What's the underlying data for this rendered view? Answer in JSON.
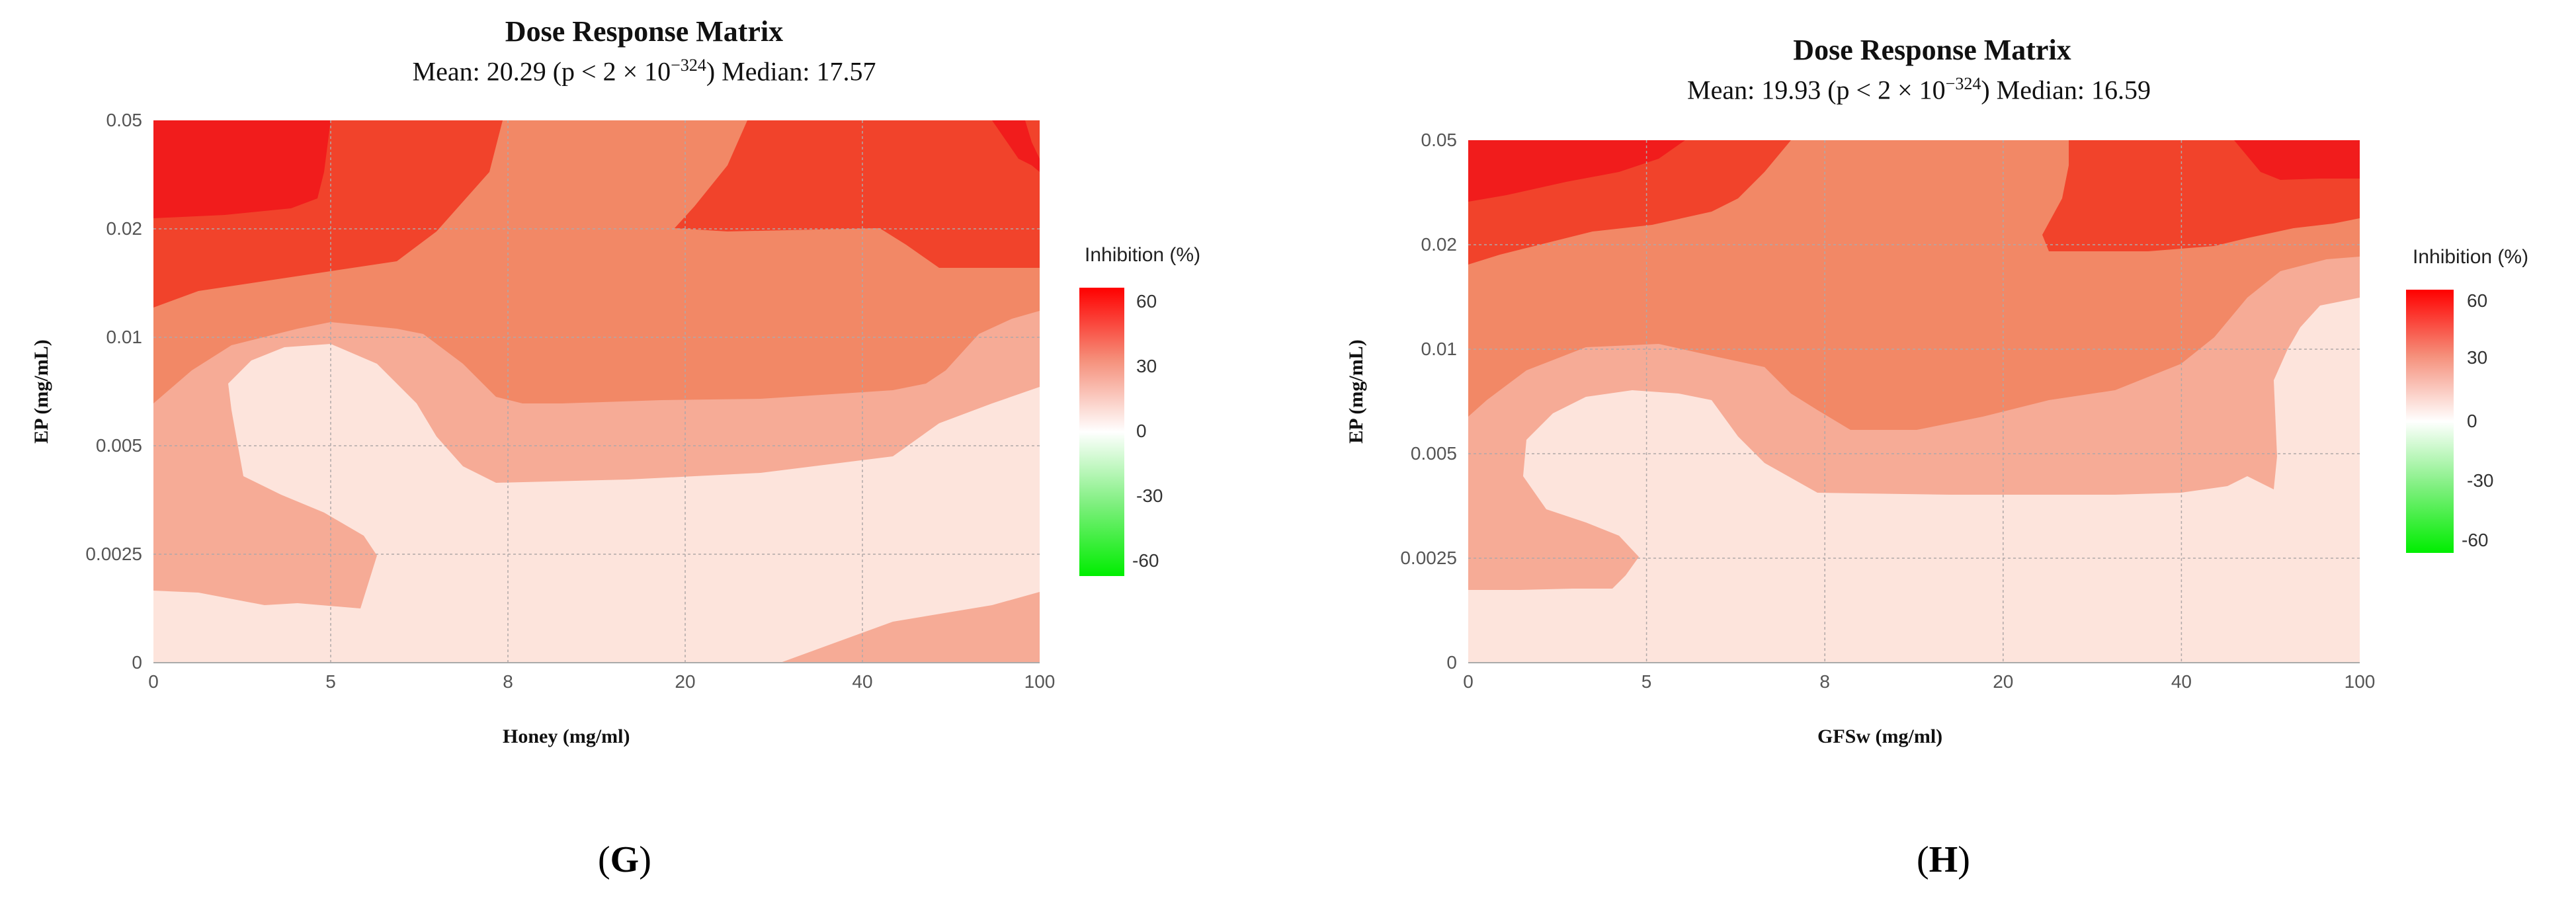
{
  "chart_data": [
    {
      "type": "heatmap",
      "panel": "G",
      "title": "Dose Response Matrix",
      "subtitle": {
        "mean_label": "Mean: 20.29 (p < 2 × 10",
        "p_exponent": "−324",
        "median_label": ") Median: 17.57"
      },
      "xlabel": "Honey (mg/ml)",
      "ylabel": "EP (mg/mL)",
      "x_ticks": [
        "0",
        "5",
        "8",
        "20",
        "40",
        "100"
      ],
      "y_ticks": [
        "0",
        "0.0025",
        "0.005",
        "0.01",
        "0.02",
        "0.05"
      ],
      "legend_title": "Inhibition (%)",
      "legend_ticks": [
        "60",
        "30",
        "0",
        "-30",
        "-60"
      ],
      "inhibition_levels": [
        {
          "level": "0-15",
          "color": "#fde4dc"
        },
        {
          "level": "15-30",
          "color": "#f6ab96"
        },
        {
          "level": "30-45",
          "color": "#f28866"
        },
        {
          "level": "45-60",
          "color": "#f1432b"
        },
        {
          "level": ">60",
          "color": "#f11c1c"
        }
      ],
      "caption": "G"
    },
    {
      "type": "heatmap",
      "panel": "H",
      "title": "Dose Response Matrix",
      "subtitle": {
        "mean_label": "Mean: 19.93 (p < 2 × 10",
        "p_exponent": "−324",
        "median_label": ")  Median: 16.59"
      },
      "xlabel": "GFSw (mg/ml)",
      "ylabel": "EP (mg/mL)",
      "x_ticks": [
        "0",
        "5",
        "8",
        "20",
        "40",
        "100"
      ],
      "y_ticks": [
        "0",
        "0.0025",
        "0.005",
        "0.01",
        "0.02",
        "0.05"
      ],
      "legend_title": "Inhibition (%)",
      "legend_ticks": [
        "60",
        "30",
        "0",
        "-30",
        "-60"
      ],
      "inhibition_levels": [
        {
          "level": "0-15",
          "color": "#fde4dc"
        },
        {
          "level": "15-30",
          "color": "#f6ab96"
        },
        {
          "level": "30-45",
          "color": "#f28866"
        },
        {
          "level": "45-60",
          "color": "#f1432b"
        },
        {
          "level": ">60",
          "color": "#f11c1c"
        }
      ],
      "caption": "H"
    }
  ]
}
